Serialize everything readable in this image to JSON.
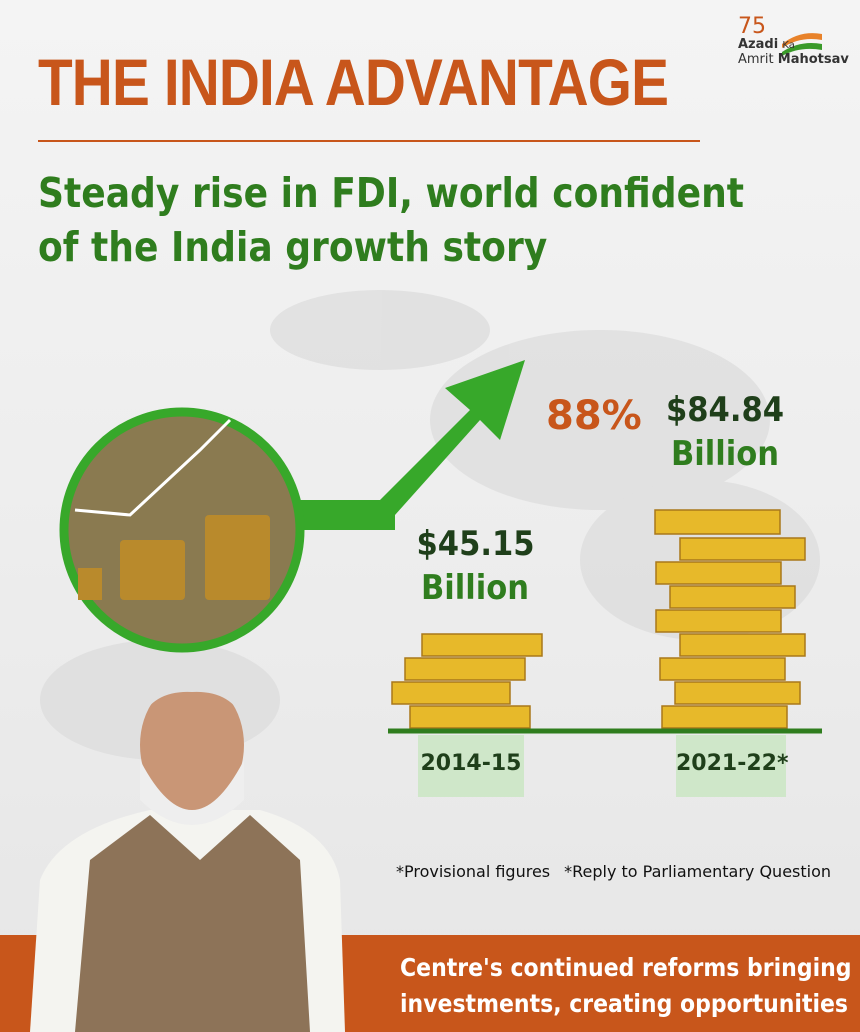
{
  "header": {
    "logo": {
      "number": "75",
      "line1": "Azadi",
      "ka": "Ka",
      "line2": "Amrit",
      "line3": "Mahotsav"
    },
    "title": "THE INDIA ADVANTAGE",
    "subtitle": [
      "Steady rise in FDI, world confident",
      "of the India growth story"
    ]
  },
  "growth": {
    "percent": "88%"
  },
  "bars": [
    {
      "amount": "$45.15",
      "unit": "Billion",
      "period": "2014-15"
    },
    {
      "amount": "$84.84",
      "unit": "Billion",
      "period": "2021-22*"
    }
  ],
  "notes": [
    "*Provisional figures",
    "*Reply to Parliamentary Question"
  ],
  "footer": [
    "Centre's continued reforms bringing",
    "investments, creating opportunities"
  ]
}
